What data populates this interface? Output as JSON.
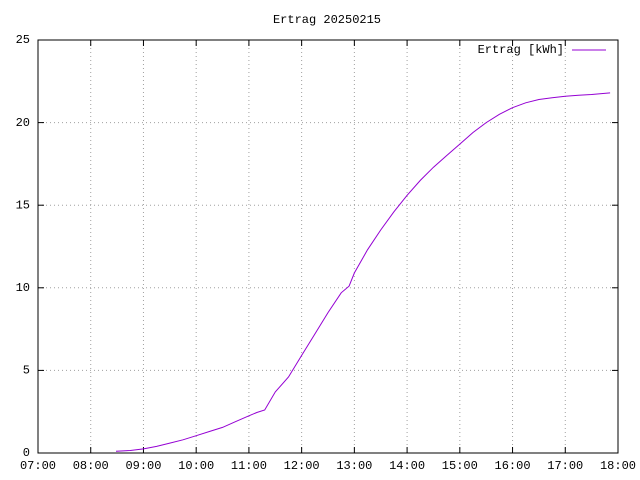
{
  "chart_data": {
    "type": "line",
    "title": "Ertrag 20250215",
    "x": [
      8.48,
      8.75,
      9.0,
      9.25,
      9.5,
      9.75,
      10.0,
      10.25,
      10.5,
      10.75,
      11.0,
      11.15,
      11.3,
      11.5,
      11.75,
      12.0,
      12.25,
      12.5,
      12.75,
      12.9,
      13.0,
      13.25,
      13.5,
      13.75,
      14.0,
      14.25,
      14.5,
      14.75,
      15.0,
      15.25,
      15.5,
      15.75,
      16.0,
      16.25,
      16.5,
      16.75,
      17.0,
      17.25,
      17.5,
      17.85
    ],
    "series": [
      {
        "name": "Ertrag [kWh]",
        "color": "#9400d3",
        "values": [
          0.1,
          0.15,
          0.25,
          0.4,
          0.6,
          0.8,
          1.05,
          1.3,
          1.55,
          1.9,
          2.25,
          2.45,
          2.6,
          3.7,
          4.6,
          5.9,
          7.2,
          8.5,
          9.7,
          10.1,
          10.9,
          12.3,
          13.5,
          14.6,
          15.6,
          16.5,
          17.3,
          18.0,
          18.7,
          19.4,
          20.0,
          20.5,
          20.9,
          21.2,
          21.4,
          21.5,
          21.6,
          21.65,
          21.7,
          21.8
        ]
      }
    ],
    "xlim": [
      7,
      18
    ],
    "xticks": [
      {
        "value": 7,
        "label": "07:00"
      },
      {
        "value": 8,
        "label": "08:00"
      },
      {
        "value": 9,
        "label": "09:00"
      },
      {
        "value": 10,
        "label": "10:00"
      },
      {
        "value": 11,
        "label": "11:00"
      },
      {
        "value": 12,
        "label": "12:00"
      },
      {
        "value": 13,
        "label": "13:00"
      },
      {
        "value": 14,
        "label": "14:00"
      },
      {
        "value": 15,
        "label": "15:00"
      },
      {
        "value": 16,
        "label": "16:00"
      },
      {
        "value": 17,
        "label": "17:00"
      },
      {
        "value": 18,
        "label": "18:00"
      }
    ],
    "ylim": [
      0,
      25
    ],
    "yticks": [
      0,
      5,
      10,
      15,
      20,
      25
    ],
    "grid": true,
    "legend": "top-right"
  }
}
